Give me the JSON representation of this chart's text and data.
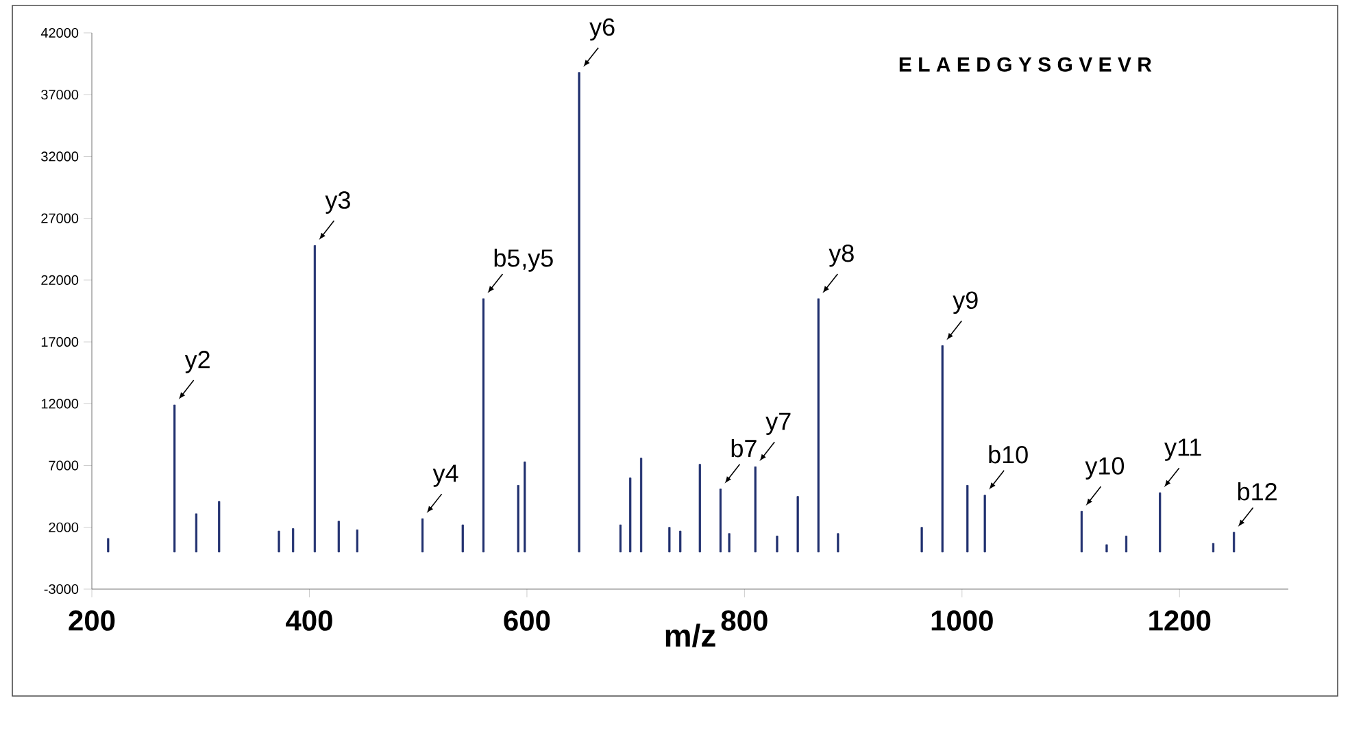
{
  "chart_data": {
    "type": "bar",
    "title": "E L A E D G Y S G V E V R",
    "xlabel": "m/z",
    "color": "#1f2f6e",
    "x": [
      215,
      276,
      296,
      317,
      372,
      385,
      405,
      427,
      444,
      504,
      541,
      560,
      592,
      598,
      648,
      686,
      695,
      705,
      731,
      741,
      759,
      778,
      786,
      810,
      830,
      849,
      868,
      886,
      963,
      982,
      1005,
      1021,
      1110,
      1133,
      1151,
      1182,
      1231,
      1250
    ],
    "values": [
      1100,
      11900,
      3100,
      4100,
      1700,
      1900,
      24800,
      2500,
      1800,
      2700,
      2200,
      20500,
      5400,
      7300,
      38800,
      2200,
      6000,
      7600,
      2000,
      1700,
      7100,
      5100,
      1500,
      6900,
      1300,
      4500,
      20500,
      1500,
      2000,
      16700,
      5400,
      4600,
      3300,
      600,
      1300,
      4800,
      700,
      1600
    ],
    "xlim": [
      200,
      1300
    ],
    "xticks": [
      200,
      400,
      600,
      800,
      1000,
      1200
    ],
    "ylim": [
      -3000,
      42000
    ],
    "yticks": [
      -3000,
      2000,
      7000,
      12000,
      17000,
      22000,
      27000,
      32000,
      37000,
      42000
    ],
    "annotations": [
      {
        "text": "y2",
        "x": 276,
        "y": 11900
      },
      {
        "text": "y3",
        "x": 405,
        "y": 24800
      },
      {
        "text": "y4",
        "x": 504,
        "y": 2700
      },
      {
        "text": "b5",
        "x": 560,
        "y": 20500
      },
      {
        "text": ",y5",
        "x": 560,
        "y": 20500
      },
      {
        "text": "y6",
        "x": 648,
        "y": 38800
      },
      {
        "text": "b7",
        "x": 778,
        "y": 5100
      },
      {
        "text": "y7",
        "x": 810,
        "y": 6900
      },
      {
        "text": "y8",
        "x": 868,
        "y": 20500
      },
      {
        "text": "y9",
        "x": 982,
        "y": 16700
      },
      {
        "text": "b10",
        "x": 1021,
        "y": 4600
      },
      {
        "text": "y10",
        "x": 1110,
        "y": 3300
      },
      {
        "text": "y11",
        "x": 1182,
        "y": 4800
      },
      {
        "text": "b12",
        "x": 1250,
        "y": 1600
      }
    ]
  }
}
